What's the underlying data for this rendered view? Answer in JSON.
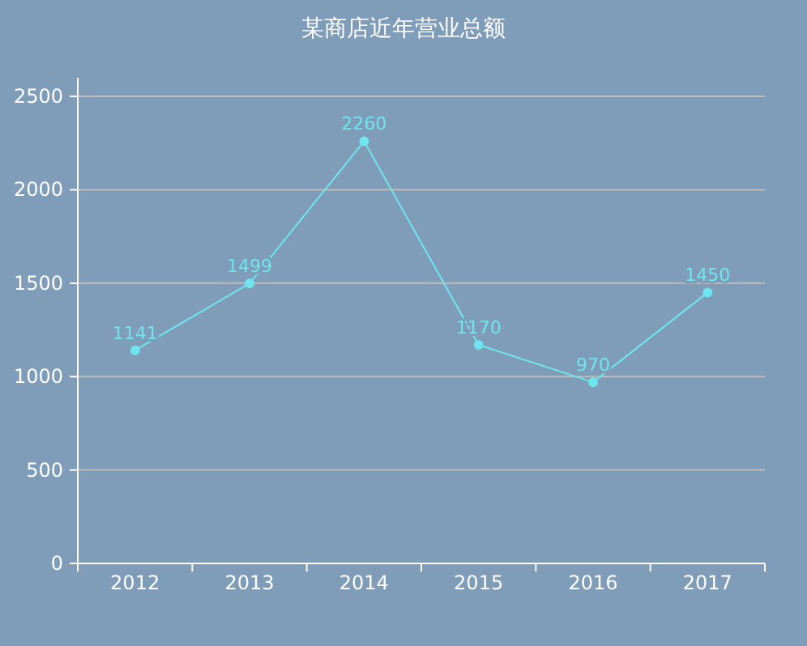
{
  "chart_data": {
    "type": "line",
    "title": "某商店近年营业总额",
    "categories": [
      "2012",
      "2013",
      "2014",
      "2015",
      "2016",
      "2017"
    ],
    "series": [
      {
        "color": "#6fe6ee",
        "values": [
          1141,
          1499,
          2260,
          1170,
          970,
          1450
        ]
      }
    ],
    "ylim": [
      0,
      2600
    ],
    "yticks": [
      0,
      500,
      1000,
      1500,
      2000,
      2500
    ],
    "grid": "y",
    "marker": "circle",
    "data_labels": true
  }
}
